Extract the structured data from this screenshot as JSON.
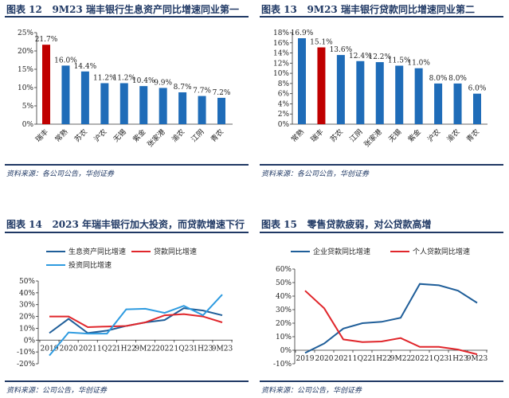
{
  "colors": {
    "bar": "#1f6cb8",
    "highlight": "#c00000",
    "line_dark": "#1f5e99",
    "line_red": "#e0262b",
    "line_light": "#2e9be0",
    "title": "#1f3864",
    "axis": "#333333"
  },
  "chart_data": [
    {
      "type": "bar",
      "fig_label": "图表 12",
      "title": "9M23 瑞丰银行生息资产同比增速同业第一",
      "source": "资料来源：各公司公告，华创证券",
      "categories": [
        "瑞丰",
        "常熟",
        "苏农",
        "沪农",
        "无锡",
        "紫金",
        "张家港",
        "渝农",
        "江阴",
        "青农"
      ],
      "values": [
        21.7,
        16.0,
        14.4,
        11.2,
        11.2,
        10.4,
        9.9,
        8.7,
        7.7,
        7.2
      ],
      "labels": [
        "21.7%",
        "16.0%",
        "14.4%",
        "11.2%",
        "11.2%",
        "10.4%",
        "9.9%",
        "8.7%",
        "7.7%",
        "7.2%"
      ],
      "highlight": "瑞丰",
      "ylim": [
        0,
        25
      ],
      "yticks": [
        "0%",
        "5%",
        "10%",
        "15%",
        "20%",
        "25%"
      ]
    },
    {
      "type": "bar",
      "fig_label": "图表 13",
      "title": "9M23 瑞丰银行贷款同比增速同业第二",
      "source": "资料来源：各公司公告，华创证券",
      "categories": [
        "常熟",
        "瑞丰",
        "苏农",
        "江阴",
        "张家港",
        "无锡",
        "紫金",
        "沪农",
        "渝农",
        "青农"
      ],
      "values": [
        16.9,
        15.1,
        13.6,
        12.4,
        12.2,
        11.5,
        11.0,
        8.0,
        8.0,
        6.0
      ],
      "labels": [
        "16.9%",
        "15.1%",
        "13.6%",
        "12.4%",
        "12.2%",
        "11.5%",
        "11.0%",
        "8.0%",
        "8.0%",
        "6.0%"
      ],
      "highlight": "瑞丰",
      "ylim": [
        0,
        18
      ],
      "yticks": [
        "0%",
        "2%",
        "4%",
        "6%",
        "8%",
        "10%",
        "12%",
        "14%",
        "16%",
        "18%"
      ]
    },
    {
      "type": "line",
      "fig_label": "图表 14",
      "title": "2023 年瑞丰银行加大投资，而贷款增速下行",
      "source": "资料来源：公司公告，华创证券",
      "categories": [
        "2019",
        "2020",
        "2021",
        "1Q22",
        "1H22",
        "9M22",
        "2022",
        "1Q23",
        "1H23",
        "9M23"
      ],
      "series": [
        {
          "name": "生息资产同比增速",
          "color_key": "line_dark",
          "values": [
            6,
            18,
            6,
            8,
            12,
            15,
            17,
            27,
            25,
            21
          ]
        },
        {
          "name": "贷款同比增速",
          "color_key": "line_red",
          "values": [
            20,
            20,
            11,
            11.5,
            12,
            15,
            21,
            22,
            20,
            15
          ]
        },
        {
          "name": "投资同比增速",
          "color_key": "line_light",
          "values": [
            -13,
            6.5,
            5.5,
            5.5,
            26,
            26.5,
            23,
            29,
            21,
            38.5
          ]
        }
      ],
      "ylim": [
        -20,
        50
      ],
      "yticks": [
        "-20%",
        "-10%",
        "0%",
        "10%",
        "20%",
        "30%",
        "40%",
        "50%"
      ]
    },
    {
      "type": "line",
      "fig_label": "图表 15",
      "title": "零售贷款疲弱，对公贷款高增",
      "source": "资料来源：公司公告，华创证券",
      "categories": [
        "2019",
        "2020",
        "2021",
        "1Q22",
        "1H22",
        "9M22",
        "2022",
        "1Q23",
        "1H23",
        "9M23"
      ],
      "series": [
        {
          "name": "企业贷款同比增速",
          "color_key": "line_dark",
          "values": [
            -2,
            5,
            16,
            20,
            21,
            24,
            49,
            48,
            44,
            35
          ]
        },
        {
          "name": "个人贷款同比增速",
          "color_key": "line_red",
          "values": [
            44,
            31,
            8,
            6,
            6.5,
            9,
            2.5,
            2.5,
            0.5,
            -3
          ]
        }
      ],
      "ylim": [
        -10,
        60
      ],
      "yticks": [
        "-10%",
        "0%",
        "10%",
        "20%",
        "30%",
        "40%",
        "50%",
        "60%"
      ]
    }
  ]
}
